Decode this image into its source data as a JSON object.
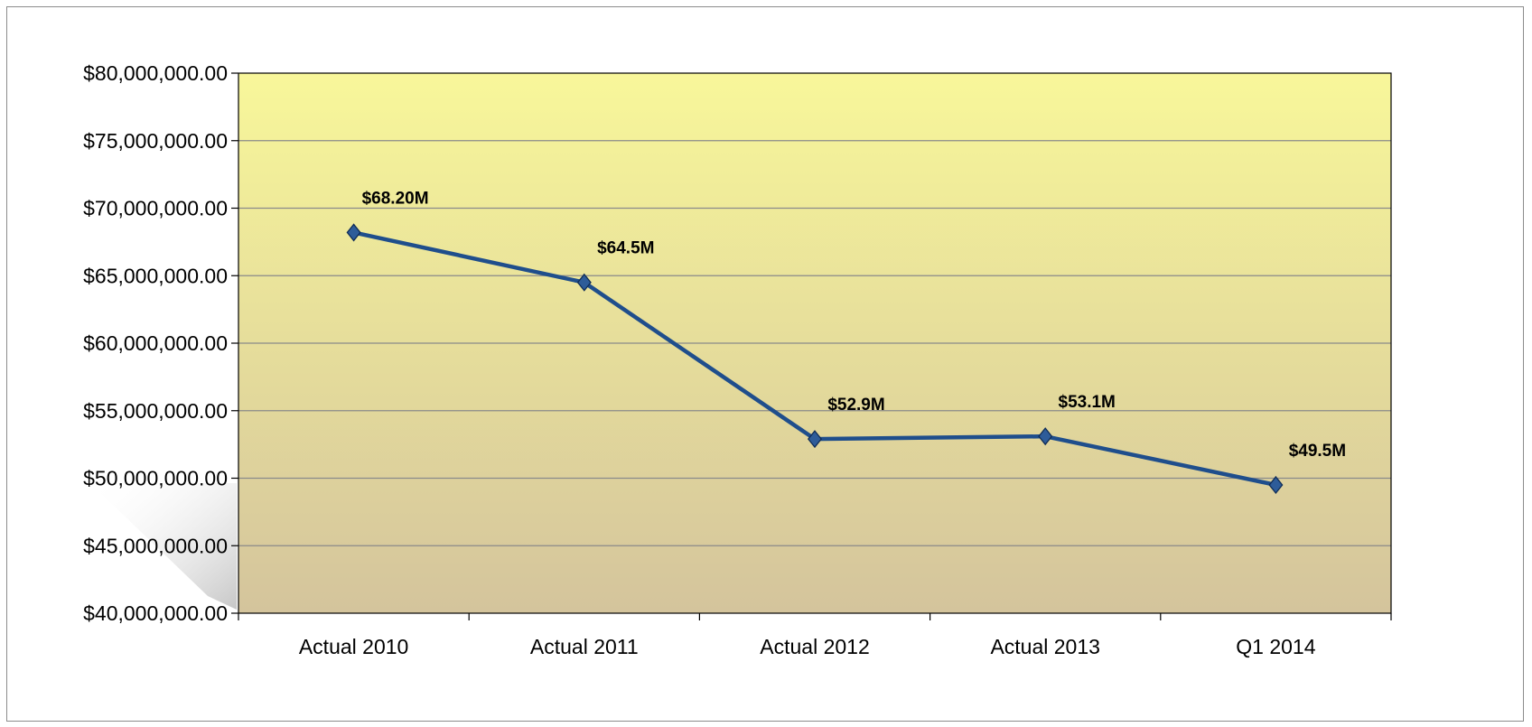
{
  "chart_data": {
    "type": "line",
    "title": "",
    "xlabel": "",
    "ylabel": "",
    "categories": [
      "Actual 2010",
      "Actual 2011",
      "Actual 2012",
      "Actual 2013",
      "Q1 2014"
    ],
    "series": [
      {
        "values": [
          68200000,
          64500000,
          52900000,
          53100000,
          49500000
        ],
        "data_labels": [
          "$68.20M",
          "$64.5M",
          "$52.9M",
          "$53.1M",
          "$49.5M"
        ]
      }
    ],
    "ylim": [
      40000000,
      80000000
    ],
    "ytick_step": 5000000,
    "ytick_labels": [
      "$40,000,000.00",
      "$45,000,000.00",
      "$50,000,000.00",
      "$55,000,000.00",
      "$60,000,000.00",
      "$65,000,000.00",
      "$70,000,000.00",
      "$75,000,000.00",
      "$80,000,000.00"
    ],
    "grid": true,
    "legend": "none",
    "colors": {
      "line": "#1f4e8c",
      "marker": "#2e5c99",
      "gridline": "#8a8a8a",
      "plot_bg_top": "#f8f79a",
      "plot_bg_bottom": "#d4c49c"
    }
  }
}
